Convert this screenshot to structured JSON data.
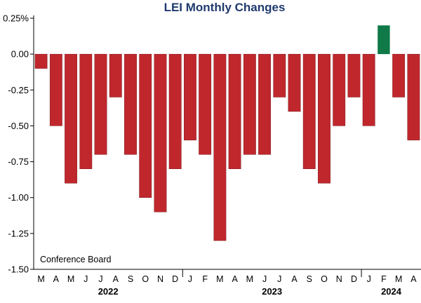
{
  "chart_data": {
    "type": "bar",
    "title": "LEI Monthly Changes",
    "source_note": "Conference Board",
    "ylim": [
      -1.5,
      0.25
    ],
    "y_ticks": [
      0.25,
      0.0,
      -0.25,
      -0.5,
      -0.75,
      -1.0,
      -1.25,
      -1.5
    ],
    "y_tick_labels": [
      "0.25%",
      "0.00",
      "-0.25",
      "-0.50",
      "-0.75",
      "-1.00",
      "-1.25",
      "-1.50"
    ],
    "categories": [
      "M",
      "A",
      "M",
      "J",
      "J",
      "A",
      "S",
      "O",
      "N",
      "D",
      "J",
      "F",
      "M",
      "A",
      "M",
      "J",
      "J",
      "A",
      "S",
      "O",
      "N",
      "D",
      "J",
      "F",
      "M",
      "A"
    ],
    "values": [
      -0.1,
      -0.5,
      -0.9,
      -0.8,
      -0.7,
      -0.3,
      -0.7,
      -1.0,
      -1.1,
      -0.8,
      -0.6,
      -0.7,
      -1.3,
      -0.8,
      -0.7,
      -0.7,
      -0.3,
      -0.4,
      -0.8,
      -0.9,
      -0.5,
      -0.3,
      -0.5,
      0.2,
      -0.3,
      -0.6
    ],
    "year_labels": [
      {
        "label": "2022",
        "start_index": 0,
        "end_index": 9
      },
      {
        "label": "2023",
        "start_index": 10,
        "end_index": 21
      },
      {
        "label": "2024",
        "start_index": 22,
        "end_index": 25
      }
    ],
    "grid": false,
    "colors": {
      "negative": "#c0272d",
      "positive": "#0f7a47",
      "title": "#1f3a6d",
      "axis": "#000000"
    }
  }
}
